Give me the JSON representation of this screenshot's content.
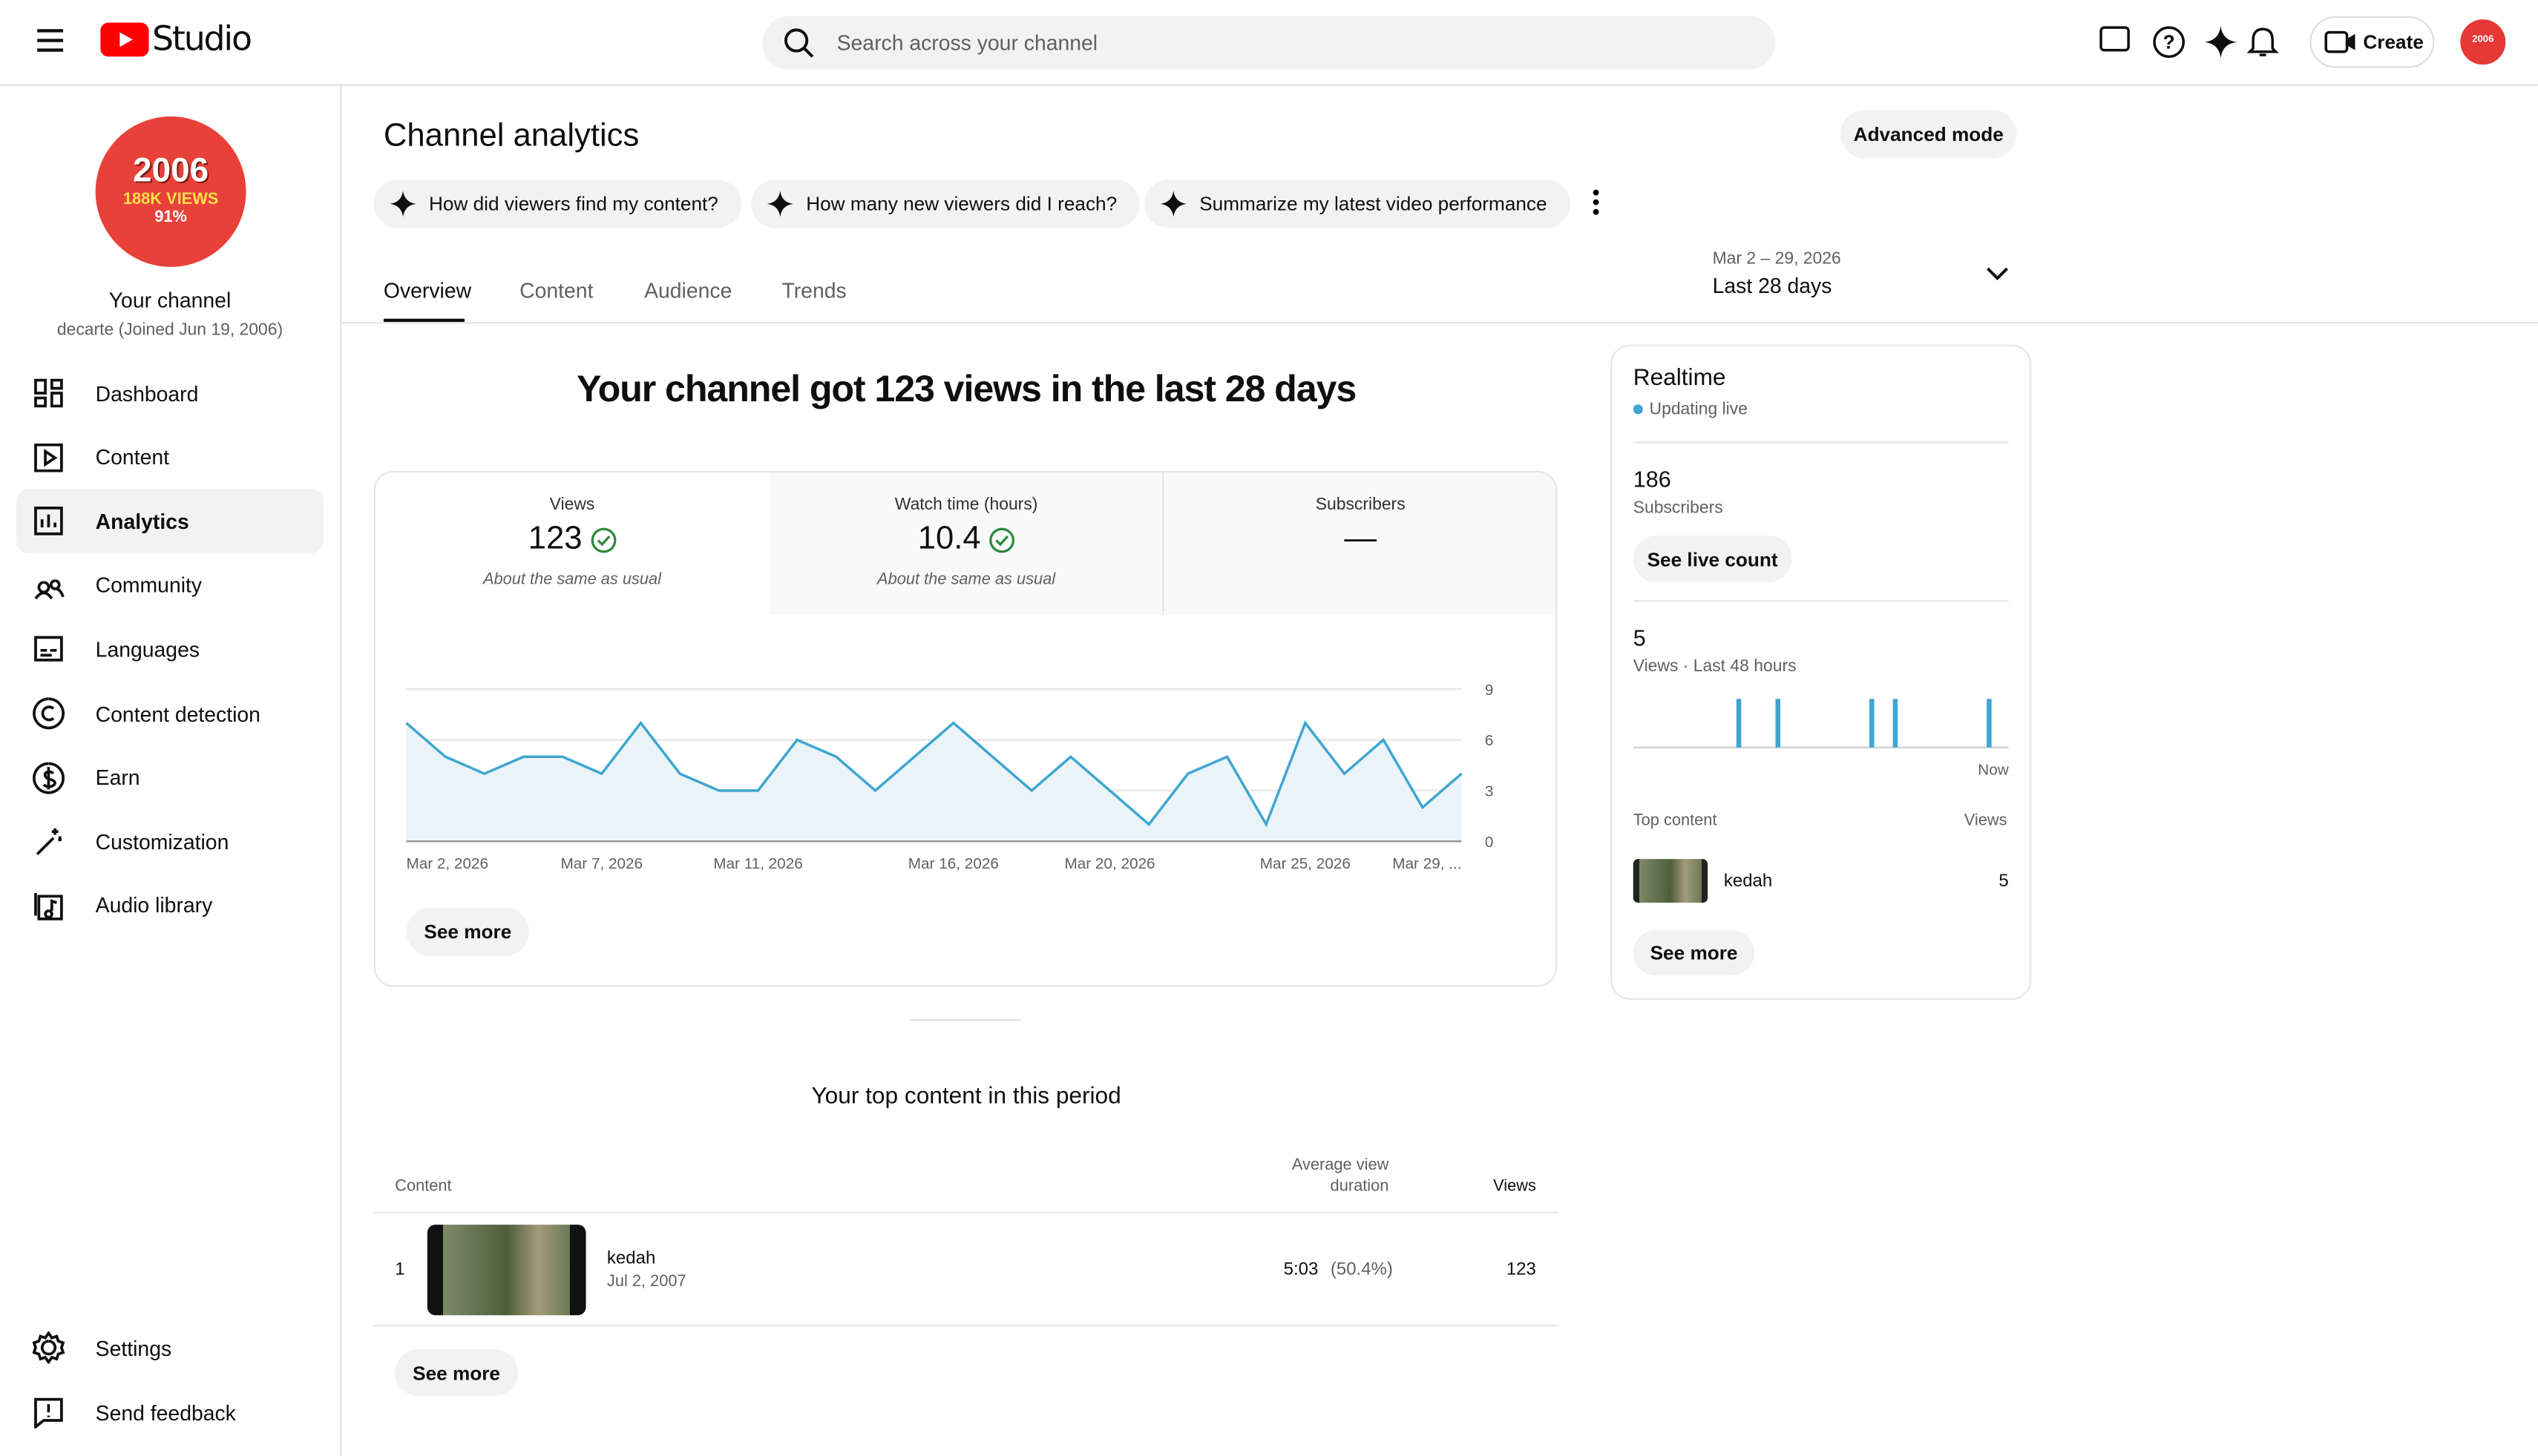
{
  "header": {
    "logo": "Studio",
    "search_placeholder": "Search across your channel",
    "create": "Create"
  },
  "sidebar": {
    "avatar": {
      "line1": "2006",
      "line2": "188K VIEWS",
      "line3": "91%"
    },
    "channel_title": "Your channel",
    "channel_subtitle": "decarte (Joined Jun 19, 2006)",
    "nav": [
      "Dashboard",
      "Content",
      "Analytics",
      "Community",
      "Languages",
      "Content detection",
      "Earn",
      "Customization",
      "Audio library"
    ],
    "footer": [
      "Settings",
      "Send feedback"
    ]
  },
  "page": {
    "title": "Channel analytics",
    "advanced": "Advanced mode",
    "prompts": [
      "How did viewers find my content?",
      "How many new viewers did I reach?",
      "Summarize my latest video performance"
    ],
    "tabs": [
      "Overview",
      "Content",
      "Audience",
      "Trends"
    ],
    "date_range": "Mar 2 – 29, 2026",
    "period": "Last 28 days"
  },
  "overview": {
    "headline": "Your channel got 123 views in the last 28 days",
    "metrics": [
      {
        "label": "Views",
        "value": "123",
        "note": "About the same as usual"
      },
      {
        "label": "Watch time (hours)",
        "value": "10.4",
        "note": "About the same as usual"
      },
      {
        "label": "Subscribers",
        "value": "—"
      }
    ],
    "see_more": "See more"
  },
  "top_content": {
    "title": "Your top content in this period",
    "columns": [
      "Content",
      "Average view duration",
      "Views"
    ],
    "rows": [
      {
        "rank": "1",
        "title": "kedah",
        "date": "Jul 2, 2007",
        "avd": "5:03",
        "avd_pct": "(50.4%)",
        "views": "123"
      }
    ],
    "see_more": "See more"
  },
  "realtime": {
    "title": "Realtime",
    "status": "Updating live",
    "subscribers": "186",
    "subscribers_label": "Subscribers",
    "live_count": "See live count",
    "views": "5",
    "views_label": "Views · Last 48 hours",
    "top_content": "Top content",
    "views_col": "Views",
    "item": {
      "title": "kedah",
      "views": "5"
    },
    "see_more": "See more"
  },
  "chart_data": [
    {
      "type": "line",
      "color": "#3ea6d0",
      "area_color": "#eaf4f8",
      "categories": [
        "Mar 2, 2026",
        null,
        null,
        null,
        null,
        "Mar 7, 2026",
        null,
        null,
        null,
        "Mar 11, 2026",
        null,
        null,
        null,
        null,
        "Mar 16, 2026",
        null,
        null,
        null,
        "Mar 20, 2026",
        null,
        null,
        null,
        null,
        "Mar 25, 2026",
        null,
        null,
        null,
        "Mar 29, ..."
      ],
      "values": [
        7,
        5,
        4,
        5,
        5,
        4,
        7,
        4,
        3,
        3,
        6,
        5,
        3,
        5,
        7,
        5,
        3,
        5,
        3,
        1,
        4,
        5,
        1,
        7,
        4,
        6,
        2,
        4
      ],
      "ylim": [
        0,
        9
      ],
      "yticks": [
        0,
        3,
        6,
        9
      ],
      "grid": true
    },
    {
      "type": "bar",
      "color": "#3ea6d0",
      "categories": [
        null,
        null,
        null,
        null,
        null,
        null,
        null,
        null,
        null,
        null,
        null,
        null,
        null,
        null,
        null,
        null,
        null,
        null,
        null,
        null,
        null,
        null,
        null,
        null,
        null,
        null,
        null,
        null,
        null,
        null,
        null,
        null,
        null,
        null,
        null,
        null,
        null,
        null,
        null,
        null,
        null,
        null,
        null,
        null,
        null,
        null,
        null,
        "Now"
      ],
      "values": [
        0,
        0,
        0,
        0,
        0,
        0,
        0,
        0,
        0,
        0,
        0,
        0,
        0,
        1,
        0,
        0,
        0,
        0,
        1,
        0,
        0,
        0,
        0,
        0,
        0,
        0,
        0,
        0,
        0,
        0,
        1,
        0,
        0,
        1,
        0,
        0,
        0,
        0,
        0,
        0,
        0,
        0,
        0,
        0,
        0,
        1,
        0,
        0
      ]
    }
  ]
}
